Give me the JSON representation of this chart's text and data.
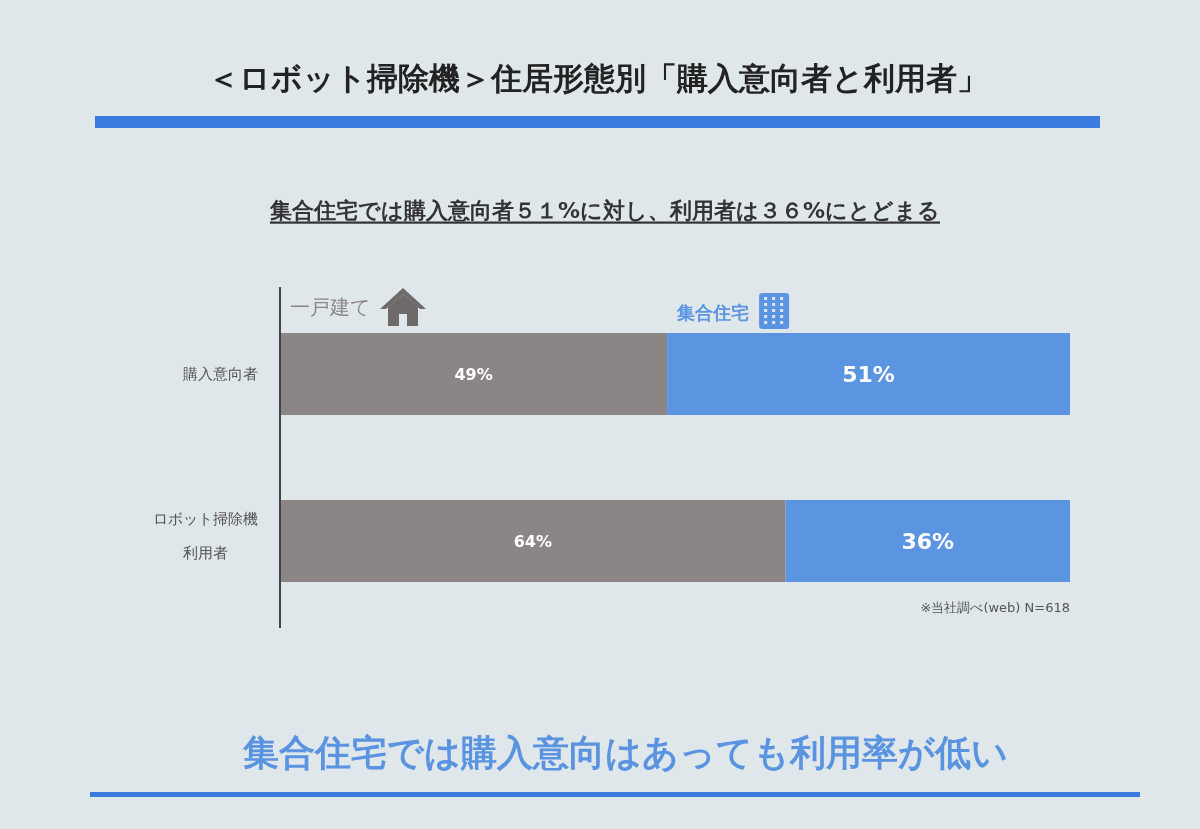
{
  "chart_data": {
    "type": "bar",
    "orientation": "horizontal",
    "stacked": true,
    "title": "＜ロボット掃除機＞住居形態別「購入意向者と利用者」",
    "subtitle": "集合住宅では購入意向者５１%に対し、利用者は３６%にとどまる",
    "categories": [
      "購入意向者",
      "ロボット掃除機利用者"
    ],
    "series": [
      {
        "name": "一戸建て",
        "color": "#8c8585",
        "values": [
          49,
          64
        ],
        "value_labels": [
          "49%",
          "64%"
        ]
      },
      {
        "name": "集合住宅",
        "color": "#5b95e2",
        "values": [
          51,
          36
        ],
        "value_labels": [
          "51%",
          "36%"
        ]
      }
    ],
    "legend": "top",
    "annotations": [
      "※当社調べ(web) N=618",
      "集合住宅では購入意向はあっても利用率が低い"
    ]
  }
}
